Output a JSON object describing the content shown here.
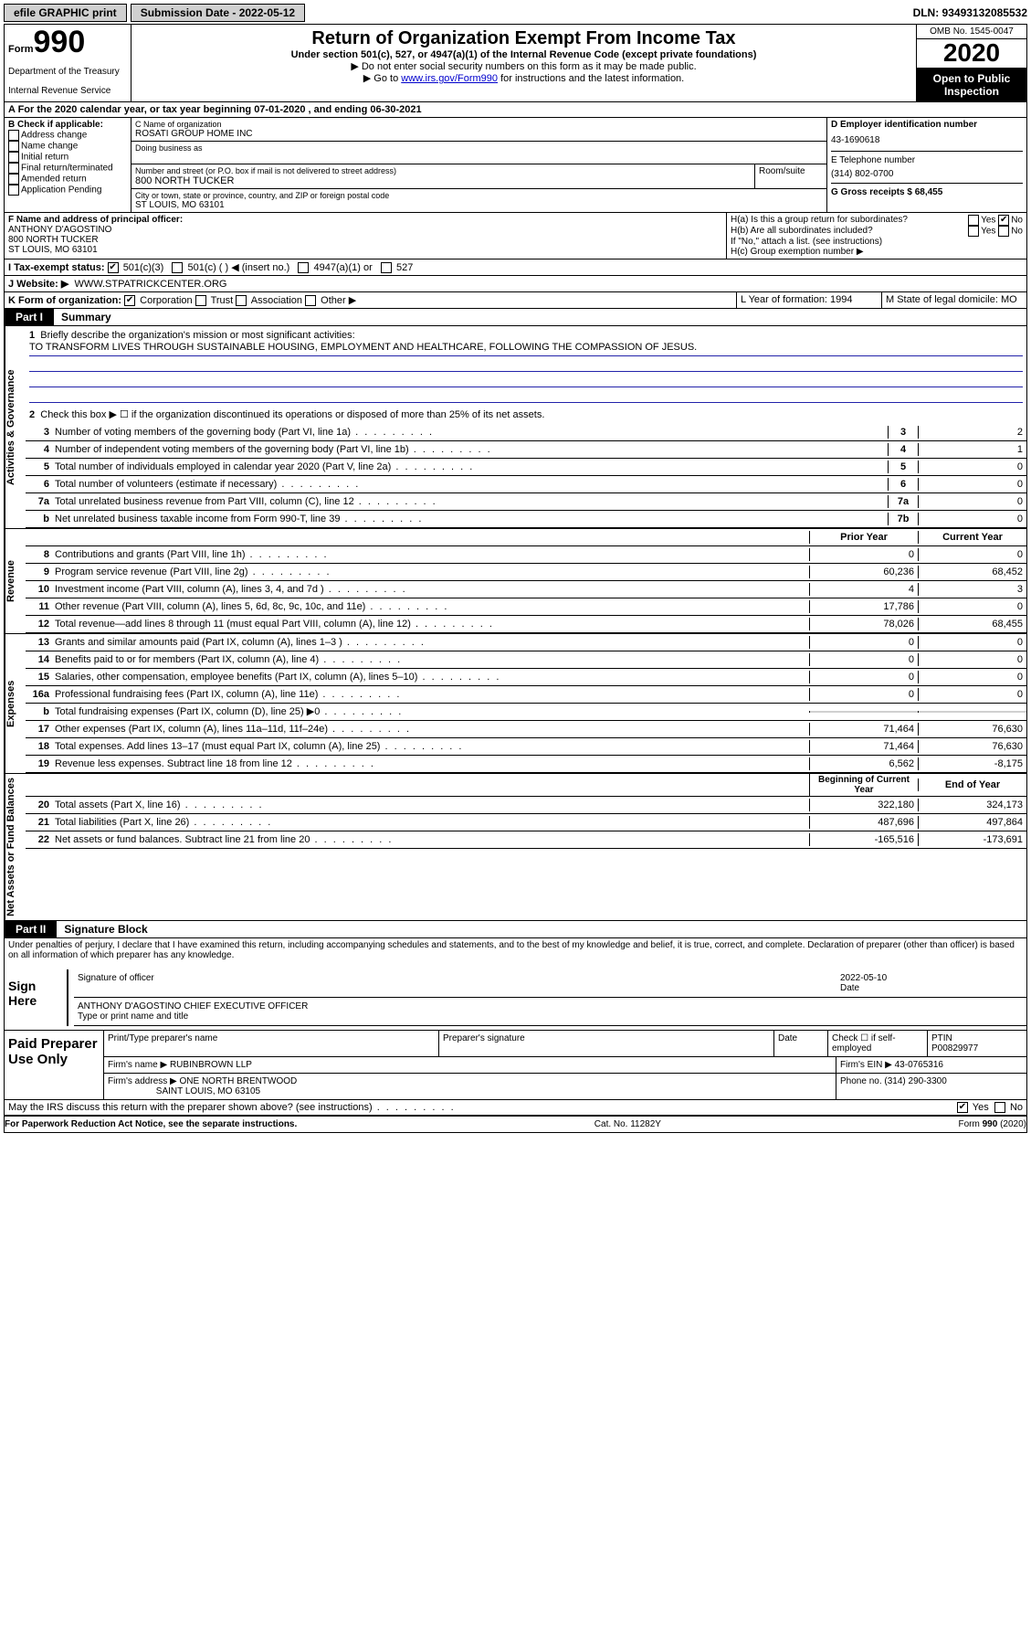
{
  "header": {
    "efile": "efile GRAPHIC print",
    "submission_label": "Submission Date - 2022-05-12",
    "dln": "DLN: 93493132085532"
  },
  "form": {
    "form_label": "Form",
    "number": "990",
    "dept1": "Department of the Treasury",
    "dept2": "Internal Revenue Service",
    "title": "Return of Organization Exempt From Income Tax",
    "subtitle": "Under section 501(c), 527, or 4947(a)(1) of the Internal Revenue Code (except private foundations)",
    "note1": "▶ Do not enter social security numbers on this form as it may be made public.",
    "note2_pre": "▶ Go to ",
    "note2_link": "www.irs.gov/Form990",
    "note2_post": " for instructions and the latest information.",
    "omb": "OMB No. 1545-0047",
    "year": "2020",
    "inspection1": "Open to Public",
    "inspection2": "Inspection"
  },
  "rowA": "A For the 2020 calendar year, or tax year beginning 07-01-2020   , and ending 06-30-2021",
  "B": {
    "header": "B Check if applicable:",
    "items": [
      "Address change",
      "Name change",
      "Initial return",
      "Final return/terminated",
      "Amended return",
      "Application Pending"
    ]
  },
  "C": {
    "name_label": "C Name of organization",
    "name": "ROSATI GROUP HOME INC",
    "dba_label": "Doing business as",
    "street_label": "Number and street (or P.O. box if mail is not delivered to street address)",
    "room_label": "Room/suite",
    "street": "800 NORTH TUCKER",
    "city_label": "City or town, state or province, country, and ZIP or foreign postal code",
    "city": "ST LOUIS, MO  63101"
  },
  "D": {
    "label": "D Employer identification number",
    "value": "43-1690618",
    "tel_label": "E Telephone number",
    "tel": "(314) 802-0700",
    "gross_label": "G Gross receipts $ 68,455"
  },
  "F": {
    "label": "F  Name and address of principal officer:",
    "name": "ANTHONY D'AGOSTINO",
    "addr1": "800 NORTH TUCKER",
    "addr2": "ST LOUIS, MO  63101"
  },
  "H": {
    "a": "H(a)  Is this a group return for subordinates?",
    "b": "H(b)  Are all subordinates included?",
    "b_note": "If \"No,\" attach a list. (see instructions)",
    "c": "H(c)  Group exemption number ▶",
    "yes": "Yes",
    "no": "No"
  },
  "I": {
    "label": "I  Tax-exempt status:",
    "opts": [
      "501(c)(3)",
      "501(c) (  ) ◀ (insert no.)",
      "4947(a)(1) or",
      "527"
    ]
  },
  "J": {
    "label": "J  Website: ▶",
    "value": "WWW.STPATRICKCENTER.ORG"
  },
  "K": {
    "label": "K Form of organization:",
    "opts": [
      "Corporation",
      "Trust",
      "Association",
      "Other ▶"
    ]
  },
  "L": {
    "label": "L Year of formation: 1994"
  },
  "M": {
    "label": "M State of legal domicile: MO"
  },
  "partI": {
    "tab": "Part I",
    "title": "Summary"
  },
  "summary": {
    "side1": "Activities & Governance",
    "side2": "Revenue",
    "side3": "Expenses",
    "side4": "Net Assets or Fund Balances",
    "q1": "Briefly describe the organization's mission or most significant activities:",
    "mission": "TO TRANSFORM LIVES THROUGH SUSTAINABLE HOUSING, EMPLOYMENT AND HEALTHCARE, FOLLOWING THE COMPASSION OF JESUS.",
    "q2": "Check this box ▶ ☐  if the organization discontinued its operations or disposed of more than 25% of its net assets.",
    "lines_gov": [
      {
        "n": "3",
        "t": "Number of voting members of the governing body (Part VI, line 1a)",
        "box": "3",
        "v": "2"
      },
      {
        "n": "4",
        "t": "Number of independent voting members of the governing body (Part VI, line 1b)",
        "box": "4",
        "v": "1"
      },
      {
        "n": "5",
        "t": "Total number of individuals employed in calendar year 2020 (Part V, line 2a)",
        "box": "5",
        "v": "0"
      },
      {
        "n": "6",
        "t": "Total number of volunteers (estimate if necessary)",
        "box": "6",
        "v": "0"
      },
      {
        "n": "7a",
        "t": "Total unrelated business revenue from Part VIII, column (C), line 12",
        "box": "7a",
        "v": "0"
      },
      {
        "n": "b",
        "t": "Net unrelated business taxable income from Form 990-T, line 39",
        "box": "7b",
        "v": "0"
      }
    ],
    "hdr_prior": "Prior Year",
    "hdr_curr": "Current Year",
    "lines_rev": [
      {
        "n": "8",
        "t": "Contributions and grants (Part VIII, line 1h)",
        "p": "0",
        "c": "0"
      },
      {
        "n": "9",
        "t": "Program service revenue (Part VIII, line 2g)",
        "p": "60,236",
        "c": "68,452"
      },
      {
        "n": "10",
        "t": "Investment income (Part VIII, column (A), lines 3, 4, and 7d )",
        "p": "4",
        "c": "3"
      },
      {
        "n": "11",
        "t": "Other revenue (Part VIII, column (A), lines 5, 6d, 8c, 9c, 10c, and 11e)",
        "p": "17,786",
        "c": "0"
      },
      {
        "n": "12",
        "t": "Total revenue—add lines 8 through 11 (must equal Part VIII, column (A), line 12)",
        "p": "78,026",
        "c": "68,455"
      }
    ],
    "lines_exp": [
      {
        "n": "13",
        "t": "Grants and similar amounts paid (Part IX, column (A), lines 1–3 )",
        "p": "0",
        "c": "0"
      },
      {
        "n": "14",
        "t": "Benefits paid to or for members (Part IX, column (A), line 4)",
        "p": "0",
        "c": "0"
      },
      {
        "n": "15",
        "t": "Salaries, other compensation, employee benefits (Part IX, column (A), lines 5–10)",
        "p": "0",
        "c": "0"
      },
      {
        "n": "16a",
        "t": "Professional fundraising fees (Part IX, column (A), line 11e)",
        "p": "0",
        "c": "0"
      },
      {
        "n": "b",
        "t": "Total fundraising expenses (Part IX, column (D), line 25) ▶0",
        "p": "",
        "c": "",
        "shade": true
      },
      {
        "n": "17",
        "t": "Other expenses (Part IX, column (A), lines 11a–11d, 11f–24e)",
        "p": "71,464",
        "c": "76,630"
      },
      {
        "n": "18",
        "t": "Total expenses. Add lines 13–17 (must equal Part IX, column (A), line 25)",
        "p": "71,464",
        "c": "76,630"
      },
      {
        "n": "19",
        "t": "Revenue less expenses. Subtract line 18 from line 12",
        "p": "6,562",
        "c": "-8,175"
      }
    ],
    "hdr_begin": "Beginning of Current Year",
    "hdr_end": "End of Year",
    "lines_net": [
      {
        "n": "20",
        "t": "Total assets (Part X, line 16)",
        "p": "322,180",
        "c": "324,173"
      },
      {
        "n": "21",
        "t": "Total liabilities (Part X, line 26)",
        "p": "487,696",
        "c": "497,864"
      },
      {
        "n": "22",
        "t": "Net assets or fund balances. Subtract line 21 from line 20",
        "p": "-165,516",
        "c": "-173,691"
      }
    ]
  },
  "partII": {
    "tab": "Part II",
    "title": "Signature Block",
    "perjury": "Under penalties of perjury, I declare that I have examined this return, including accompanying schedules and statements, and to the best of my knowledge and belief, it is true, correct, and complete. Declaration of preparer (other than officer) is based on all information of which preparer has any knowledge."
  },
  "sign": {
    "label": "Sign Here",
    "sig_label": "Signature of officer",
    "date_label": "Date",
    "date": "2022-05-10",
    "name": "ANTHONY D'AGOSTINO  CHIEF EXECUTIVE OFFICER",
    "name_label": "Type or print name and title"
  },
  "prep": {
    "label": "Paid Preparer Use Only",
    "h1": "Print/Type preparer's name",
    "h2": "Preparer's signature",
    "h3": "Date",
    "h4_pre": "Check ☐ if self-employed",
    "h5": "PTIN",
    "ptin": "P00829977",
    "firm_label": "Firm's name    ▶",
    "firm": "RUBINBROWN LLP",
    "ein_label": "Firm's EIN ▶",
    "ein": "43-0765316",
    "addr_label": "Firm's address ▶",
    "addr1": "ONE NORTH BRENTWOOD",
    "addr2": "SAINT LOUIS, MO  63105",
    "phone_label": "Phone no.",
    "phone": "(314) 290-3300"
  },
  "discuss": {
    "text": "May the IRS discuss this return with the preparer shown above? (see instructions)",
    "yes": "Yes",
    "no": "No"
  },
  "footer": {
    "left": "For Paperwork Reduction Act Notice, see the separate instructions.",
    "mid": "Cat. No. 11282Y",
    "right": "Form 990 (2020)"
  }
}
